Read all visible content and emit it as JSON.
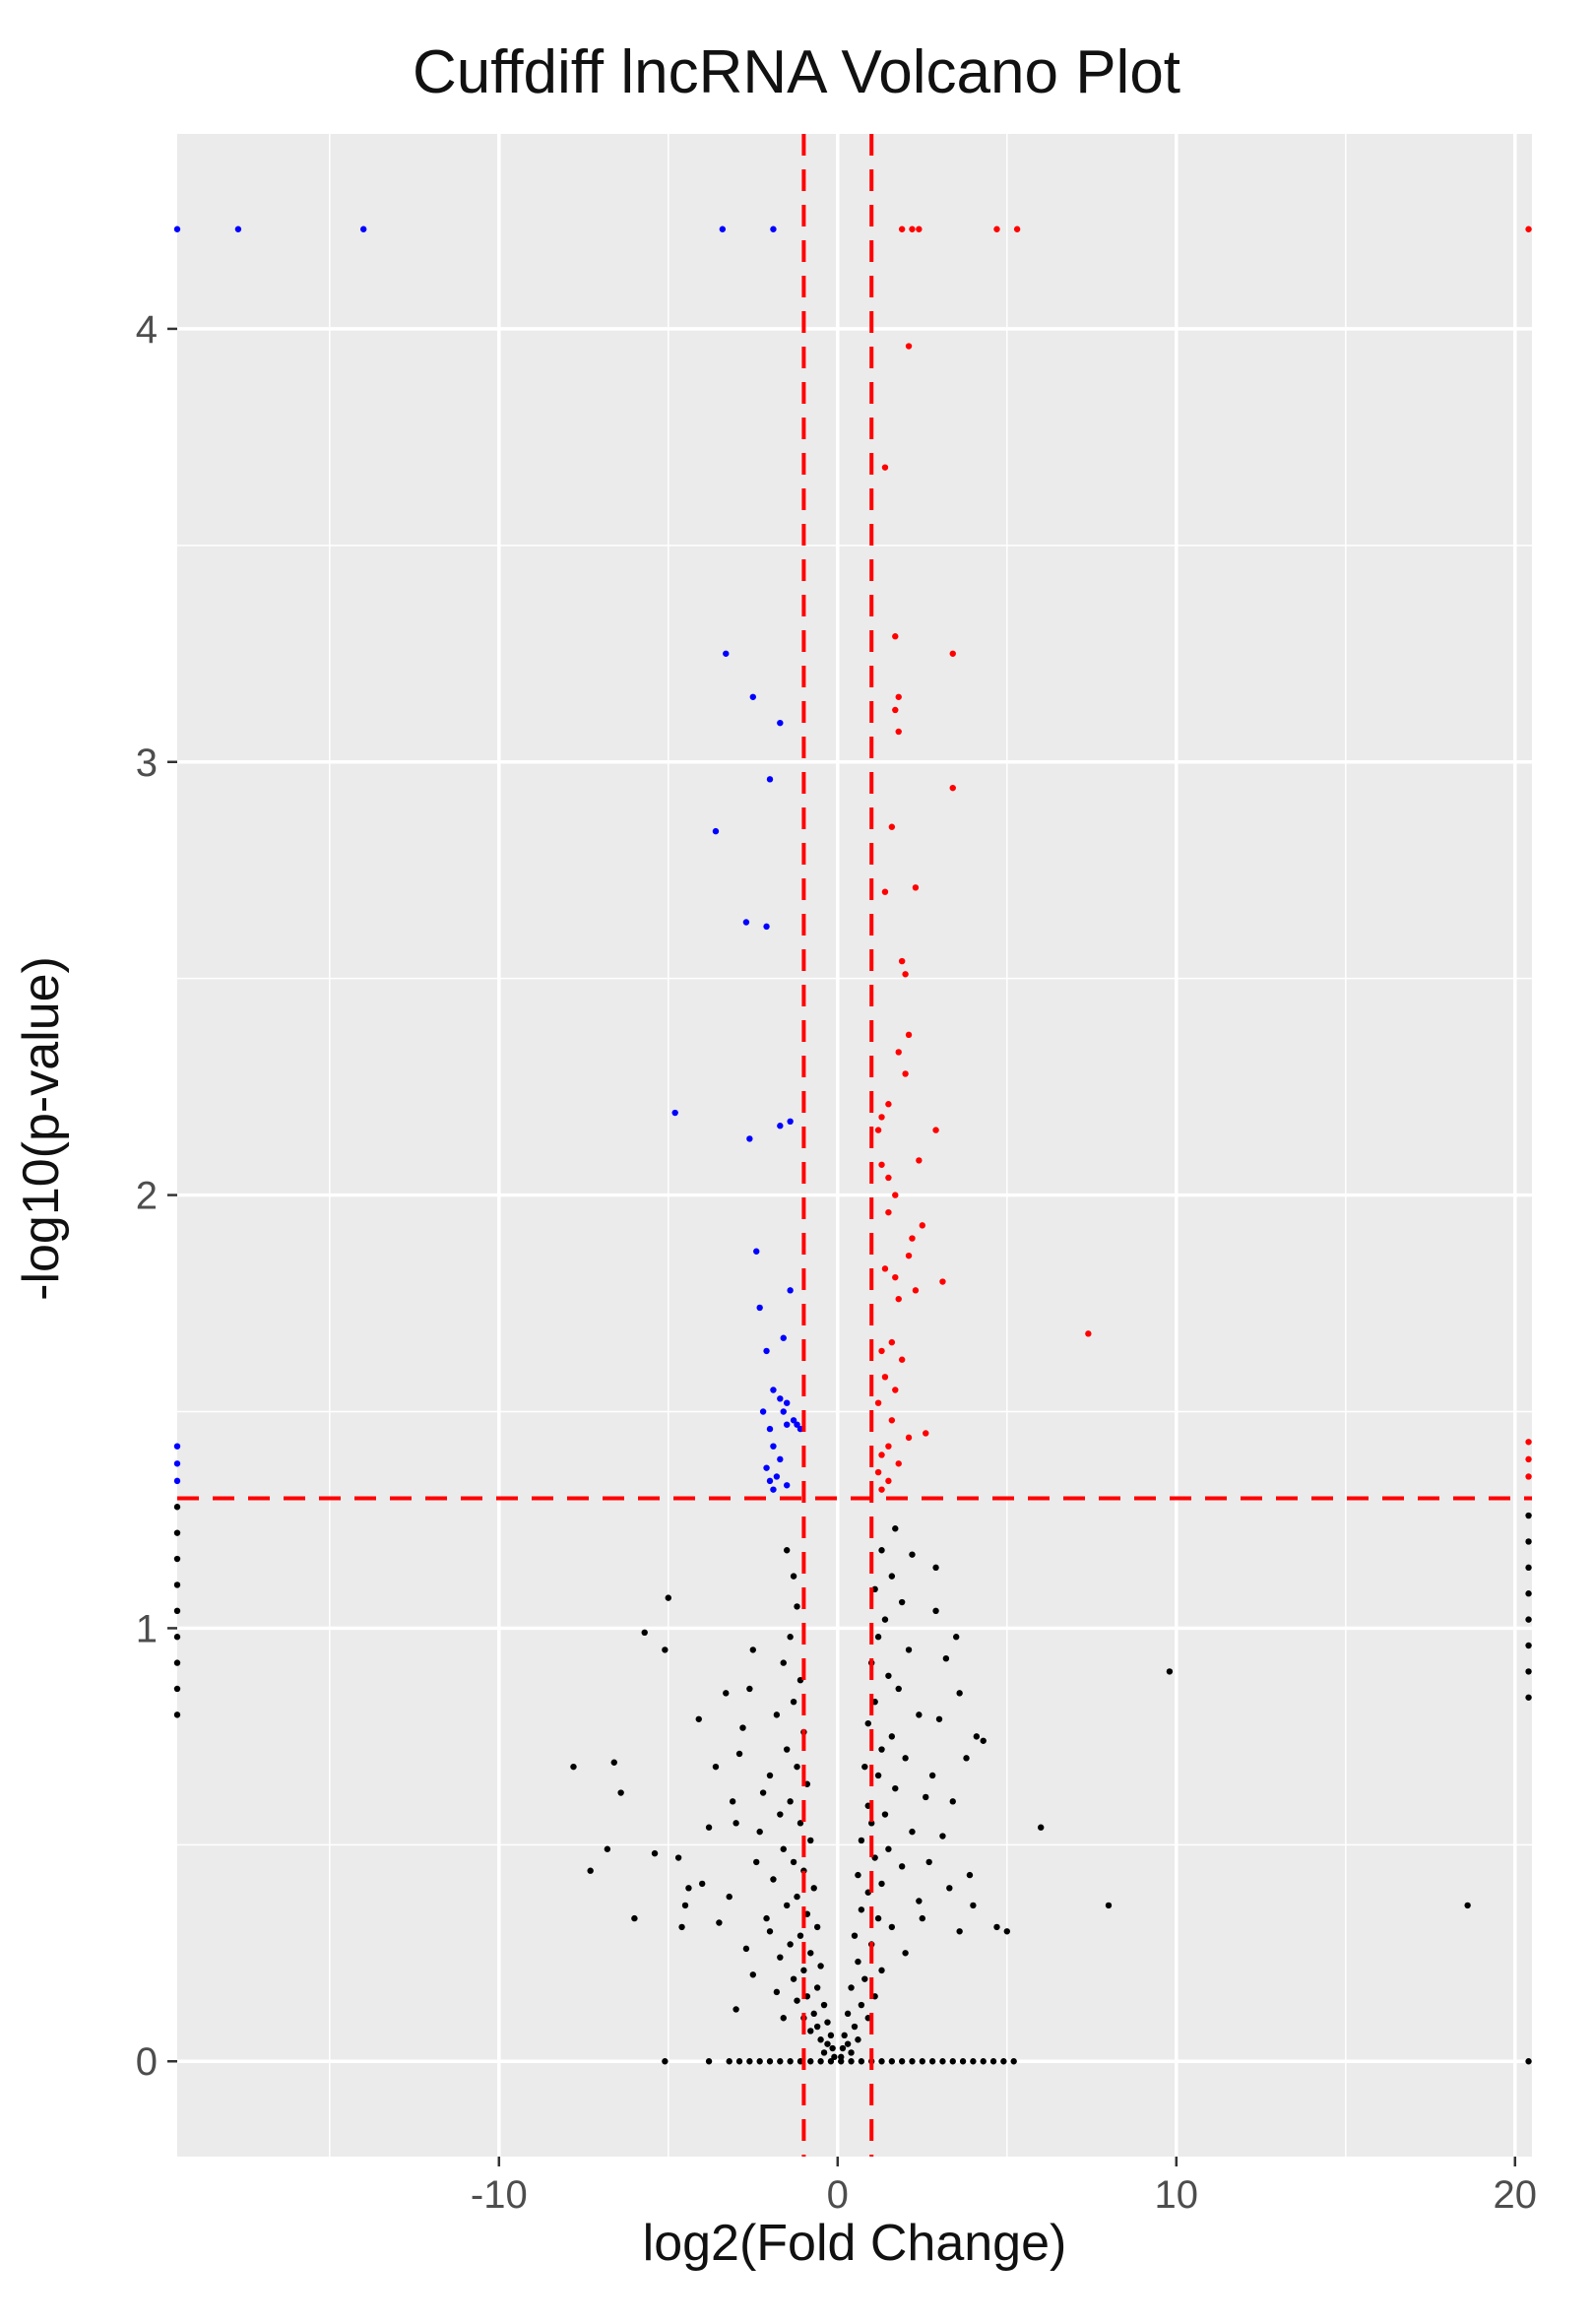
{
  "chart_data": {
    "type": "scatter",
    "title": "Cuffdiff lncRNA Volcano Plot",
    "xlabel": "log2(Fold Change)",
    "ylabel": "-log10(p-value)",
    "xlim": [
      -19.5,
      20.5
    ],
    "ylim": [
      -0.22,
      4.45
    ],
    "x_ticks": [
      -10,
      0,
      10,
      20
    ],
    "y_ticks": [
      0,
      1,
      2,
      3,
      4
    ],
    "x_tick_labels": [
      "-10",
      "0",
      "10",
      "20"
    ],
    "y_tick_labels": [
      "0",
      "1",
      "2",
      "3",
      "4"
    ],
    "grid": true,
    "background_color": "#ebebeb",
    "grid_color": "#ffffff",
    "threshold_color": "#ff0000",
    "thresholds": {
      "log2fc": [
        -1,
        1
      ],
      "neg_log10_p": 1.3
    },
    "series": [
      {
        "color": "#0000ff",
        "points": [
          [
            -19.5,
            4.23
          ],
          [
            -17.7,
            4.23
          ],
          [
            -14.0,
            4.23
          ],
          [
            -3.4,
            4.23
          ],
          [
            -1.9,
            4.23
          ],
          [
            -3.3,
            3.25
          ],
          [
            -2.5,
            3.15
          ],
          [
            -1.7,
            3.09
          ],
          [
            -2.0,
            2.96
          ],
          [
            -3.6,
            2.84
          ],
          [
            -2.7,
            2.63
          ],
          [
            -2.1,
            2.62
          ],
          [
            -4.8,
            2.19
          ],
          [
            -1.4,
            2.17
          ],
          [
            -1.7,
            2.16
          ],
          [
            -2.6,
            2.13
          ],
          [
            -2.4,
            1.87
          ],
          [
            -1.4,
            1.78
          ],
          [
            -2.3,
            1.74
          ],
          [
            -1.6,
            1.67
          ],
          [
            -2.1,
            1.64
          ],
          [
            -1.9,
            1.55
          ],
          [
            -1.7,
            1.53
          ],
          [
            -1.5,
            1.52
          ],
          [
            -1.6,
            1.5
          ],
          [
            -2.2,
            1.5
          ],
          [
            -1.3,
            1.48
          ],
          [
            -1.5,
            1.47
          ],
          [
            -1.2,
            1.47
          ],
          [
            -2.0,
            1.46
          ],
          [
            -1.1,
            1.46
          ],
          [
            -1.9,
            1.42
          ],
          [
            -1.7,
            1.39
          ],
          [
            -2.1,
            1.37
          ],
          [
            -1.8,
            1.35
          ],
          [
            -2.0,
            1.34
          ],
          [
            -1.5,
            1.33
          ],
          [
            -1.9,
            1.32
          ],
          [
            -19.5,
            1.42
          ],
          [
            -19.5,
            1.38
          ],
          [
            -19.5,
            1.34
          ]
        ]
      },
      {
        "color": "#ff0000",
        "points": [
          [
            1.9,
            4.23
          ],
          [
            2.2,
            4.23
          ],
          [
            2.4,
            4.23
          ],
          [
            4.7,
            4.23
          ],
          [
            5.3,
            4.23
          ],
          [
            20.4,
            4.23
          ],
          [
            2.1,
            3.96
          ],
          [
            1.4,
            3.68
          ],
          [
            1.7,
            3.29
          ],
          [
            3.4,
            3.25
          ],
          [
            1.8,
            3.15
          ],
          [
            1.7,
            3.12
          ],
          [
            1.8,
            3.07
          ],
          [
            3.4,
            2.94
          ],
          [
            1.6,
            2.85
          ],
          [
            2.3,
            2.71
          ],
          [
            1.4,
            2.7
          ],
          [
            1.9,
            2.54
          ],
          [
            2.0,
            2.51
          ],
          [
            2.1,
            2.37
          ],
          [
            1.8,
            2.33
          ],
          [
            2.0,
            2.28
          ],
          [
            1.5,
            2.21
          ],
          [
            1.3,
            2.18
          ],
          [
            1.2,
            2.15
          ],
          [
            2.9,
            2.15
          ],
          [
            2.4,
            2.08
          ],
          [
            1.3,
            2.07
          ],
          [
            1.5,
            2.04
          ],
          [
            1.7,
            2.0
          ],
          [
            1.5,
            1.96
          ],
          [
            2.5,
            1.93
          ],
          [
            2.2,
            1.9
          ],
          [
            2.1,
            1.86
          ],
          [
            1.4,
            1.83
          ],
          [
            1.7,
            1.81
          ],
          [
            3.1,
            1.8
          ],
          [
            2.3,
            1.78
          ],
          [
            1.8,
            1.76
          ],
          [
            7.4,
            1.68
          ],
          [
            1.6,
            1.66
          ],
          [
            1.3,
            1.64
          ],
          [
            1.9,
            1.62
          ],
          [
            1.4,
            1.58
          ],
          [
            1.7,
            1.55
          ],
          [
            1.2,
            1.52
          ],
          [
            1.6,
            1.48
          ],
          [
            2.6,
            1.45
          ],
          [
            2.1,
            1.44
          ],
          [
            1.5,
            1.42
          ],
          [
            1.3,
            1.4
          ],
          [
            1.8,
            1.38
          ],
          [
            1.2,
            1.36
          ],
          [
            1.5,
            1.34
          ],
          [
            1.3,
            1.32
          ],
          [
            20.4,
            1.43
          ],
          [
            20.4,
            1.39
          ],
          [
            20.4,
            1.35
          ]
        ]
      },
      {
        "color": "#000000",
        "points": [
          [
            -5.0,
            1.07
          ],
          [
            -5.7,
            0.99
          ],
          [
            -5.1,
            0.95
          ],
          [
            -7.8,
            0.68
          ],
          [
            -6.6,
            0.69
          ],
          [
            -6.4,
            0.62
          ],
          [
            -7.3,
            0.44
          ],
          [
            -6.8,
            0.49
          ],
          [
            -6.0,
            0.33
          ],
          [
            -5.4,
            0.48
          ],
          [
            -4.7,
            0.47
          ],
          [
            -4.4,
            0.4
          ],
          [
            -4.0,
            0.41
          ],
          [
            -3.2,
            0.38
          ],
          [
            -3.5,
            0.32
          ],
          [
            -4.5,
            0.36
          ],
          [
            -3.0,
            0.55
          ],
          [
            -3.6,
            0.68
          ],
          [
            -2.8,
            0.77
          ],
          [
            -4.1,
            0.79
          ],
          [
            -3.3,
            0.85
          ],
          [
            -2.5,
            0.95
          ],
          [
            -2.2,
            0.62
          ],
          [
            -2.7,
            0.26
          ],
          [
            -4.6,
            0.31
          ],
          [
            -1.5,
            1.18
          ],
          [
            -1.3,
            1.12
          ],
          [
            -1.2,
            1.05
          ],
          [
            -1.4,
            0.98
          ],
          [
            -1.6,
            0.92
          ],
          [
            -1.1,
            0.88
          ],
          [
            -1.3,
            0.83
          ],
          [
            -1.8,
            0.8
          ],
          [
            -1.0,
            0.76
          ],
          [
            -1.5,
            0.72
          ],
          [
            -1.2,
            0.68
          ],
          [
            -2.0,
            0.66
          ],
          [
            -0.9,
            0.64
          ],
          [
            -1.4,
            0.6
          ],
          [
            -1.7,
            0.57
          ],
          [
            -1.1,
            0.55
          ],
          [
            -2.3,
            0.53
          ],
          [
            -0.8,
            0.51
          ],
          [
            -1.6,
            0.49
          ],
          [
            -1.3,
            0.46
          ],
          [
            -1.0,
            0.44
          ],
          [
            -1.9,
            0.42
          ],
          [
            -0.7,
            0.4
          ],
          [
            -1.2,
            0.38
          ],
          [
            -1.5,
            0.36
          ],
          [
            -0.9,
            0.34
          ],
          [
            -2.1,
            0.33
          ],
          [
            -0.6,
            0.31
          ],
          [
            -1.1,
            0.29
          ],
          [
            -1.4,
            0.27
          ],
          [
            -0.8,
            0.25
          ],
          [
            -1.7,
            0.24
          ],
          [
            -0.5,
            0.22
          ],
          [
            -1.0,
            0.21
          ],
          [
            -1.3,
            0.19
          ],
          [
            -0.6,
            0.17
          ],
          [
            -0.9,
            0.15
          ],
          [
            -1.2,
            0.14
          ],
          [
            -0.4,
            0.13
          ],
          [
            -0.7,
            0.11
          ],
          [
            -1.0,
            0.1
          ],
          [
            -0.3,
            0.09
          ],
          [
            -0.6,
            0.08
          ],
          [
            -0.8,
            0.07
          ],
          [
            -0.2,
            0.06
          ],
          [
            -0.5,
            0.05
          ],
          [
            -0.3,
            0.04
          ],
          [
            -0.15,
            0.03
          ],
          [
            -0.4,
            0.02
          ],
          [
            -0.1,
            0.01
          ],
          [
            -2.6,
            0.86
          ],
          [
            -2.9,
            0.71
          ],
          [
            -3.1,
            0.6
          ],
          [
            -2.4,
            0.46
          ],
          [
            -3.8,
            0.54
          ],
          [
            -2.0,
            0.3
          ],
          [
            -2.5,
            0.2
          ],
          [
            -1.8,
            0.16
          ],
          [
            -3.0,
            0.12
          ],
          [
            -1.6,
            0.1
          ],
          [
            1.7,
            1.23
          ],
          [
            1.3,
            1.18
          ],
          [
            1.6,
            1.12
          ],
          [
            1.1,
            1.09
          ],
          [
            1.9,
            1.06
          ],
          [
            1.4,
            1.02
          ],
          [
            1.2,
            0.98
          ],
          [
            2.1,
            0.95
          ],
          [
            1.0,
            0.92
          ],
          [
            1.5,
            0.89
          ],
          [
            1.8,
            0.86
          ],
          [
            1.1,
            0.83
          ],
          [
            2.4,
            0.8
          ],
          [
            0.9,
            0.78
          ],
          [
            1.6,
            0.75
          ],
          [
            1.3,
            0.72
          ],
          [
            2.0,
            0.7
          ],
          [
            0.8,
            0.68
          ],
          [
            1.2,
            0.66
          ],
          [
            1.7,
            0.63
          ],
          [
            2.6,
            0.61
          ],
          [
            0.9,
            0.59
          ],
          [
            1.4,
            0.57
          ],
          [
            1.0,
            0.55
          ],
          [
            2.2,
            0.53
          ],
          [
            0.7,
            0.51
          ],
          [
            1.5,
            0.49
          ],
          [
            1.1,
            0.47
          ],
          [
            1.9,
            0.45
          ],
          [
            0.6,
            0.43
          ],
          [
            1.3,
            0.41
          ],
          [
            0.9,
            0.39
          ],
          [
            2.4,
            0.37
          ],
          [
            0.7,
            0.35
          ],
          [
            1.2,
            0.33
          ],
          [
            1.6,
            0.31
          ],
          [
            0.5,
            0.29
          ],
          [
            1.0,
            0.27
          ],
          [
            2.0,
            0.25
          ],
          [
            0.6,
            0.23
          ],
          [
            1.3,
            0.21
          ],
          [
            0.8,
            0.19
          ],
          [
            0.4,
            0.17
          ],
          [
            1.1,
            0.15
          ],
          [
            0.7,
            0.13
          ],
          [
            0.3,
            0.11
          ],
          [
            0.9,
            0.1
          ],
          [
            0.5,
            0.08
          ],
          [
            0.2,
            0.06
          ],
          [
            0.6,
            0.05
          ],
          [
            0.3,
            0.04
          ],
          [
            0.15,
            0.03
          ],
          [
            0.4,
            0.02
          ],
          [
            0.1,
            0.01
          ],
          [
            2.9,
            1.04
          ],
          [
            3.2,
            0.93
          ],
          [
            3.6,
            0.85
          ],
          [
            3.0,
            0.79
          ],
          [
            4.1,
            0.75
          ],
          [
            3.8,
            0.7
          ],
          [
            2.8,
            0.66
          ],
          [
            3.4,
            0.6
          ],
          [
            4.3,
            0.74
          ],
          [
            3.1,
            0.52
          ],
          [
            2.7,
            0.46
          ],
          [
            3.9,
            0.43
          ],
          [
            3.3,
            0.4
          ],
          [
            4.0,
            0.36
          ],
          [
            2.5,
            0.33
          ],
          [
            3.6,
            0.3
          ],
          [
            4.7,
            0.31
          ],
          [
            5.0,
            0.3
          ],
          [
            2.9,
            1.14
          ],
          [
            3.5,
            0.98
          ],
          [
            6.0,
            0.54
          ],
          [
            8.0,
            0.36
          ],
          [
            9.8,
            0.9
          ],
          [
            18.6,
            0.36
          ],
          [
            2.2,
            1.17
          ],
          [
            -19.5,
            1.28
          ],
          [
            -19.5,
            1.22
          ],
          [
            -19.5,
            1.16
          ],
          [
            -19.5,
            1.1
          ],
          [
            -19.5,
            1.04
          ],
          [
            -19.5,
            0.98
          ],
          [
            -19.5,
            0.92
          ],
          [
            -19.5,
            0.86
          ],
          [
            -19.5,
            0.8
          ],
          [
            20.4,
            1.26
          ],
          [
            20.4,
            1.2
          ],
          [
            20.4,
            1.14
          ],
          [
            20.4,
            1.08
          ],
          [
            20.4,
            1.02
          ],
          [
            20.4,
            0.96
          ],
          [
            20.4,
            0.9
          ],
          [
            20.4,
            0.84
          ],
          [
            20.4,
            0.0
          ],
          [
            -5.1,
            0.0
          ],
          [
            -3.8,
            0.0
          ],
          [
            -3.2,
            0.0
          ],
          [
            -2.9,
            0.0
          ],
          [
            -2.6,
            0.0
          ],
          [
            -2.3,
            0.0
          ],
          [
            -2.0,
            0.0
          ],
          [
            -1.7,
            0.0
          ],
          [
            -1.4,
            0.0
          ],
          [
            -1.1,
            0.0
          ],
          [
            -0.8,
            0.0
          ],
          [
            -0.5,
            0.0
          ],
          [
            -0.2,
            0.0
          ],
          [
            0.1,
            0.0
          ],
          [
            0.4,
            0.0
          ],
          [
            0.7,
            0.0
          ],
          [
            1.0,
            0.0
          ],
          [
            1.3,
            0.0
          ],
          [
            1.6,
            0.0
          ],
          [
            1.9,
            0.0
          ],
          [
            2.2,
            0.0
          ],
          [
            2.5,
            0.0
          ],
          [
            2.8,
            0.0
          ],
          [
            3.1,
            0.0
          ],
          [
            3.4,
            0.0
          ],
          [
            3.7,
            0.0
          ],
          [
            4.0,
            0.0
          ],
          [
            4.3,
            0.0
          ],
          [
            4.6,
            0.0
          ],
          [
            4.9,
            0.0
          ],
          [
            5.2,
            0.0
          ]
        ]
      }
    ]
  }
}
